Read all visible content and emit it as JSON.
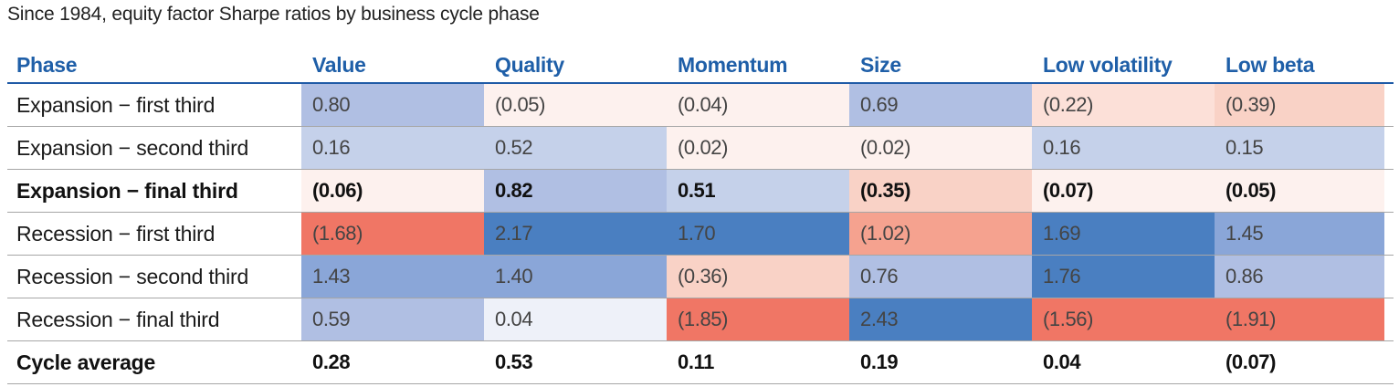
{
  "chart_data": {
    "type": "table",
    "title": "Since 1984, equity factor Sharpe ratios by business cycle phase",
    "columns": [
      "Phase",
      "Value",
      "Quality",
      "Momentum",
      "Size",
      "Low volatility",
      "Low beta"
    ],
    "rows": [
      {
        "label": "Expansion − first third",
        "bold": false,
        "values": [
          0.8,
          -0.05,
          -0.04,
          0.69,
          -0.22,
          -0.39
        ],
        "display": [
          "0.80",
          "(0.05)",
          "(0.04)",
          "0.69",
          "(0.22)",
          "(0.39)"
        ]
      },
      {
        "label": "Expansion − second third",
        "bold": false,
        "values": [
          0.16,
          0.52,
          -0.02,
          -0.02,
          0.16,
          0.15
        ],
        "display": [
          "0.16",
          "0.52",
          "(0.02)",
          "(0.02)",
          "0.16",
          "0.15"
        ]
      },
      {
        "label": "Expansion − final third",
        "bold": true,
        "values": [
          -0.06,
          0.82,
          0.51,
          -0.35,
          -0.07,
          -0.05
        ],
        "display": [
          "(0.06)",
          "0.82",
          "0.51",
          "(0.35)",
          "(0.07)",
          "(0.05)"
        ]
      },
      {
        "label": "Recession − first third",
        "bold": false,
        "values": [
          -1.68,
          2.17,
          1.7,
          -1.02,
          1.69,
          1.45
        ],
        "display": [
          "(1.68)",
          "2.17",
          "1.70",
          "(1.02)",
          "1.69",
          "1.45"
        ]
      },
      {
        "label": "Recession − second third",
        "bold": false,
        "values": [
          1.43,
          1.4,
          -0.36,
          0.76,
          1.76,
          0.86
        ],
        "display": [
          "1.43",
          "1.40",
          "(0.36)",
          "0.76",
          "1.76",
          "0.86"
        ]
      },
      {
        "label": "Recession − final third",
        "bold": false,
        "values": [
          0.59,
          0.04,
          -1.85,
          2.43,
          -1.56,
          -1.91
        ],
        "display": [
          "0.59",
          "0.04",
          "(1.85)",
          "2.43",
          "(1.56)",
          "(1.91)"
        ]
      },
      {
        "label": "Cycle average",
        "bold": true,
        "values": [
          0.28,
          0.53,
          0.11,
          0.19,
          0.04,
          -0.07
        ],
        "display": [
          "0.28",
          "0.53",
          "0.11",
          "0.19",
          "0.04",
          "(0.07)"
        ],
        "no_shading": true
      }
    ],
    "colors": {
      "header_text": "#1f5fa8",
      "positive_scale": [
        "#eef1f9",
        "#c5d1ea",
        "#b0bfe3",
        "#8aa6d8",
        "#4a7fc1"
      ],
      "negative_scale": [
        "#fdf1ee",
        "#fce0d8",
        "#f9d2c6",
        "#f5a28f",
        "#f07665"
      ]
    }
  }
}
